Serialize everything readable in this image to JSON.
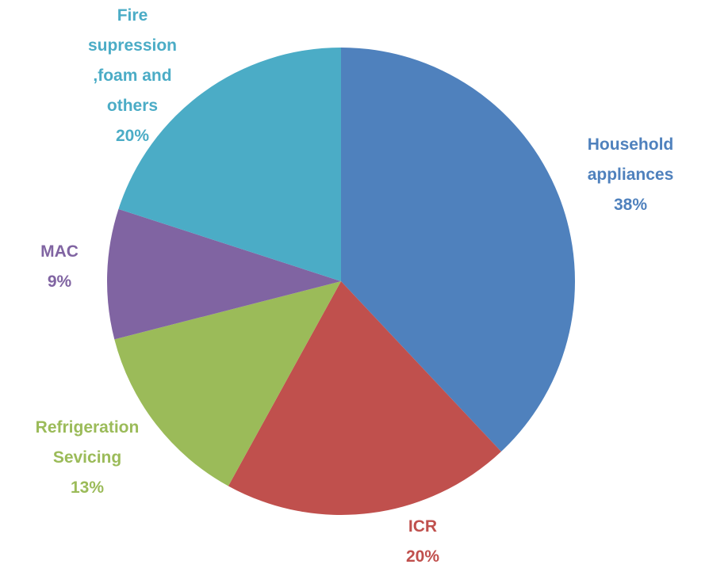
{
  "chart_data": {
    "type": "pie",
    "categories": [
      "Household appliances",
      "ICR",
      "Refrigeration Sevicing",
      "MAC",
      "Fire supression ,foam and others"
    ],
    "values": [
      38,
      20,
      13,
      9,
      20
    ],
    "value_labels": [
      "38%",
      "20%",
      "13%",
      "9%",
      "20%"
    ],
    "colors": [
      "#4f81bd",
      "#c0504d",
      "#9bbb59",
      "#8064a2",
      "#4bacc6"
    ]
  }
}
